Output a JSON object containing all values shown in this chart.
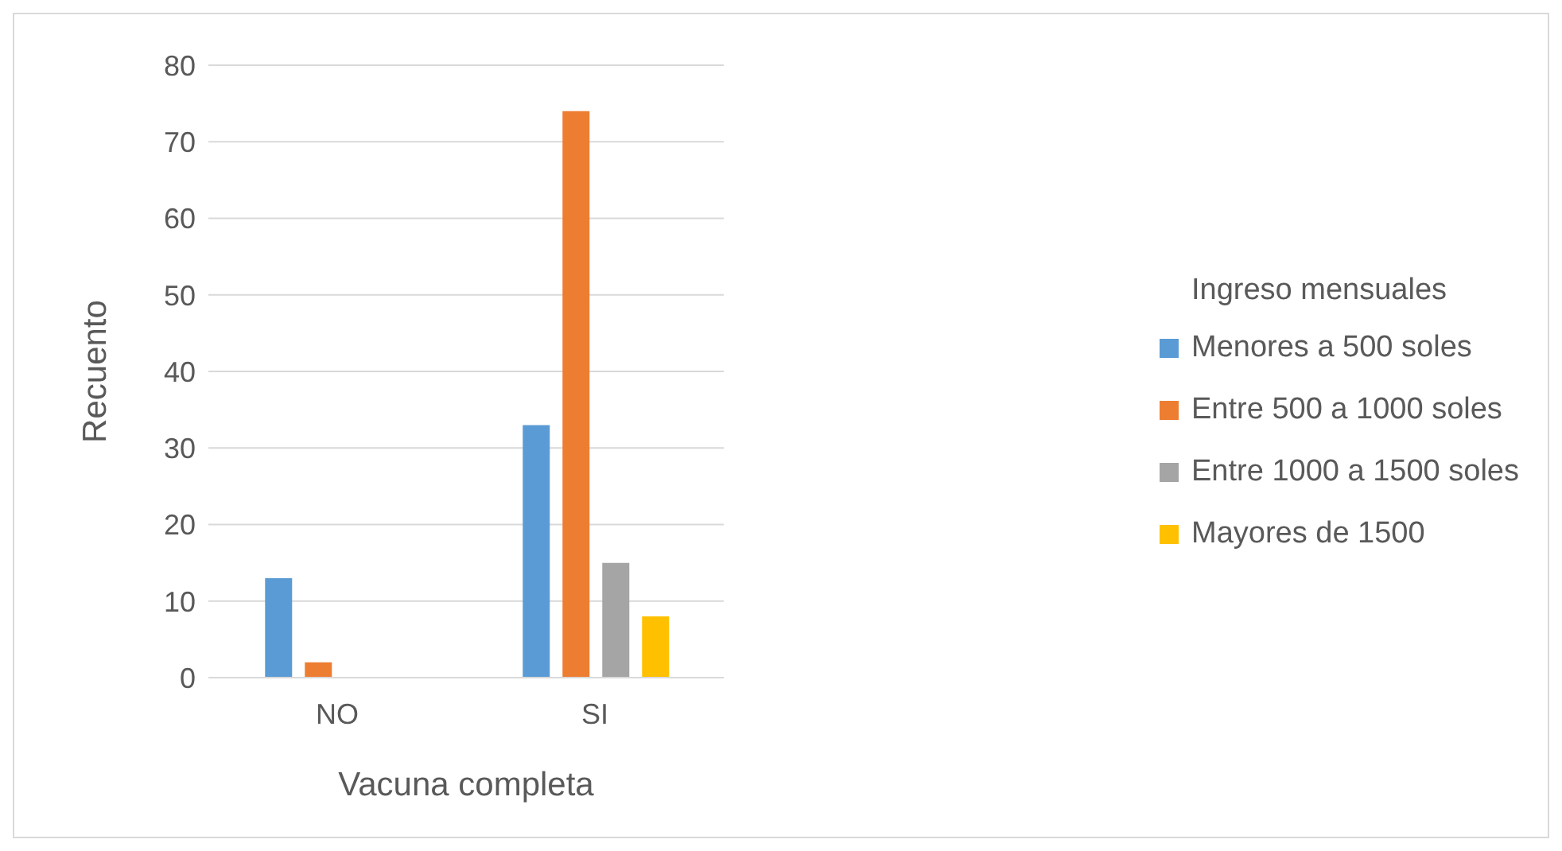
{
  "chart_data": {
    "type": "bar",
    "xlabel": "Vacuna completa",
    "ylabel": "Recuento",
    "legend_title": "Ingreso mensuales",
    "categories": [
      "NO",
      "SI"
    ],
    "series": [
      {
        "name": "Menores a 500 soles",
        "color": "#5b9bd5",
        "values": [
          13,
          33
        ]
      },
      {
        "name": "Entre 500 a 1000 soles",
        "color": "#ed7d31",
        "values": [
          2,
          74
        ]
      },
      {
        "name": "Entre 1000 a 1500 soles",
        "color": "#a5a5a5",
        "values": [
          null,
          15
        ]
      },
      {
        "name": "Mayores de 1500",
        "color": "#ffc000",
        "values": [
          null,
          8
        ]
      }
    ],
    "ylim": [
      0,
      80
    ],
    "yticks": [
      0,
      10,
      20,
      30,
      40,
      50,
      60,
      70,
      80
    ],
    "grid": "y",
    "legend": "right"
  }
}
